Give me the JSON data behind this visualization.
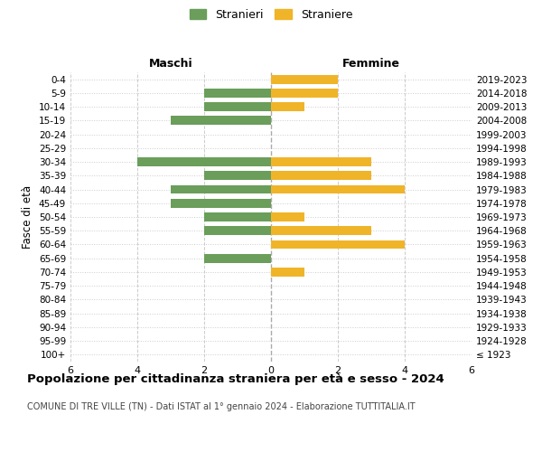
{
  "age_groups": [
    "100+",
    "95-99",
    "90-94",
    "85-89",
    "80-84",
    "75-79",
    "70-74",
    "65-69",
    "60-64",
    "55-59",
    "50-54",
    "45-49",
    "40-44",
    "35-39",
    "30-34",
    "25-29",
    "20-24",
    "15-19",
    "10-14",
    "5-9",
    "0-4"
  ],
  "birth_years": [
    "≤ 1923",
    "1924-1928",
    "1929-1933",
    "1934-1938",
    "1939-1943",
    "1944-1948",
    "1949-1953",
    "1954-1958",
    "1959-1963",
    "1964-1968",
    "1969-1973",
    "1974-1978",
    "1979-1983",
    "1984-1988",
    "1989-1993",
    "1994-1998",
    "1999-2003",
    "2004-2008",
    "2009-2013",
    "2014-2018",
    "2019-2023"
  ],
  "maschi": [
    0,
    0,
    0,
    0,
    0,
    0,
    0,
    2,
    0,
    2,
    2,
    3,
    3,
    2,
    4,
    0,
    0,
    3,
    2,
    2,
    0
  ],
  "femmine": [
    0,
    0,
    0,
    0,
    0,
    0,
    1,
    0,
    4,
    3,
    1,
    0,
    4,
    3,
    3,
    0,
    0,
    0,
    1,
    2,
    2
  ],
  "color_maschi": "#6a9e5a",
  "color_femmine": "#f0b429",
  "title": "Popolazione per cittadinanza straniera per età e sesso - 2024",
  "subtitle": "COMUNE DI TRE VILLE (TN) - Dati ISTAT al 1° gennaio 2024 - Elaborazione TUTTITALIA.IT",
  "xlabel_left": "Maschi",
  "xlabel_right": "Femmine",
  "ylabel": "Fasce di età",
  "legend_stranieri": "Stranieri",
  "legend_straniere": "Straniere",
  "xlim": 6,
  "background_color": "#ffffff",
  "grid_color": "#cccccc",
  "bar_height": 0.65
}
